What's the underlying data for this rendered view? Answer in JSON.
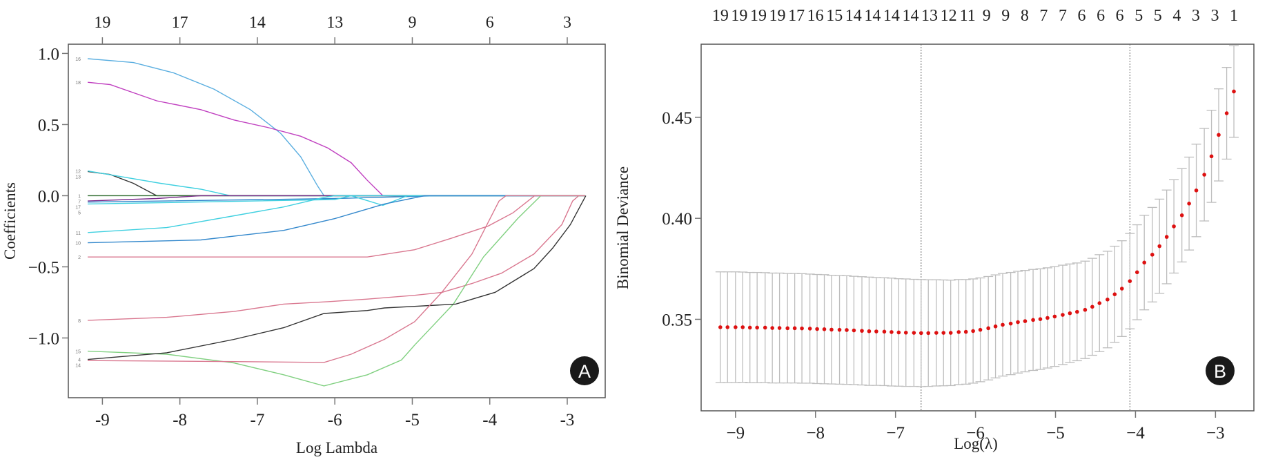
{
  "chart_data": [
    {
      "panel": "A",
      "type": "line",
      "title": "",
      "xlabel": "Log Lambda",
      "ylabel": "Coefficients",
      "xlim": [
        -9.44,
        -2.51
      ],
      "ylim": [
        -1.42,
        1.065
      ],
      "xticks": [
        "-9",
        "-8",
        "-7",
        "-6",
        "-5",
        "-4",
        "-3"
      ],
      "xtick_values": [
        -9,
        -8,
        -7,
        -6,
        -5,
        -4,
        -3
      ],
      "yticks": [
        "1.0",
        "0.5",
        "0.0",
        "−0.5",
        "−1.0"
      ],
      "ytick_values": [
        1.0,
        0.5,
        0.0,
        -0.5,
        -1.0
      ],
      "top_axis_labels": [
        "19",
        "17",
        "14",
        "13",
        "9",
        "6",
        "3"
      ],
      "grid": false,
      "series": [
        {
          "name": "16",
          "color": "#5aaee0",
          "points": [
            [
              -9.19,
              0.963
            ],
            [
              -8.6,
              0.936
            ],
            [
              -8.08,
              0.863
            ],
            [
              -7.56,
              0.749
            ],
            [
              -7.09,
              0.605
            ],
            [
              -6.7,
              0.439
            ],
            [
              -6.44,
              0.273
            ],
            [
              -6.22,
              0.066
            ],
            [
              -6.14,
              0
            ],
            [
              -2.77,
              0
            ]
          ]
        },
        {
          "name": "18",
          "color": "#c040c0",
          "points": [
            [
              -9.19,
              0.797
            ],
            [
              -8.9,
              0.781
            ],
            [
              -8.3,
              0.667
            ],
            [
              -7.73,
              0.605
            ],
            [
              -7.3,
              0.532
            ],
            [
              -6.87,
              0.48
            ],
            [
              -6.44,
              0.418
            ],
            [
              -6.09,
              0.335
            ],
            [
              -5.79,
              0.232
            ],
            [
              -5.58,
              0.108
            ],
            [
              -5.38,
              0
            ],
            [
              -2.77,
              0
            ]
          ]
        },
        {
          "name": "13",
          "color": "#333333",
          "points": [
            [
              -9.19,
              0.17
            ],
            [
              -8.9,
              0.149
            ],
            [
              -8.6,
              0.087
            ],
            [
              -8.3,
              0
            ],
            [
              -2.77,
              0
            ]
          ]
        },
        {
          "name": "12",
          "color": "#40d0e0",
          "points": [
            [
              -9.19,
              0.174
            ],
            [
              -8.25,
              0.087
            ],
            [
              -7.73,
              0.046
            ],
            [
              -7.35,
              0
            ],
            [
              -2.77,
              0
            ]
          ]
        },
        {
          "name": "1",
          "color": "#2e6b2e",
          "points": [
            [
              -9.19,
              0
            ],
            [
              -2.77,
              0
            ]
          ]
        },
        {
          "name": "7",
          "color": "#7a2a8a",
          "points": [
            [
              -9.19,
              -0.037
            ],
            [
              -8.3,
              -0.02
            ],
            [
              -7.73,
              0
            ],
            [
              -2.77,
              0
            ]
          ]
        },
        {
          "name": "17",
          "color": "#3388cc",
          "points": [
            [
              -9.19,
              -0.045
            ],
            [
              -6.0,
              -0.02
            ],
            [
              -4.63,
              0
            ],
            [
              -2.77,
              0
            ]
          ]
        },
        {
          "name": "5",
          "color": "#40d0e0",
          "points": [
            [
              -9.19,
              -0.058
            ],
            [
              -6.0,
              -0.027
            ],
            [
              -5.79,
              0
            ],
            [
              -5.38,
              -0.068
            ],
            [
              -5.06,
              0
            ],
            [
              -2.77,
              0
            ]
          ]
        },
        {
          "name": "11",
          "color": "#40d0e0",
          "points": [
            [
              -9.19,
              -0.259
            ],
            [
              -8.17,
              -0.224
            ],
            [
              -7.3,
              -0.141
            ],
            [
              -6.66,
              -0.079
            ],
            [
              -6.14,
              -0.012
            ],
            [
              -6.0,
              0
            ],
            [
              -2.77,
              0
            ]
          ]
        },
        {
          "name": "10",
          "color": "#3388cc",
          "points": [
            [
              -9.19,
              -0.331
            ],
            [
              -7.73,
              -0.311
            ],
            [
              -6.66,
              -0.244
            ],
            [
              -6.0,
              -0.161
            ],
            [
              -5.36,
              -0.058
            ],
            [
              -4.84,
              0
            ],
            [
              -2.77,
              0
            ]
          ]
        },
        {
          "name": "2",
          "color": "#d9778f",
          "points": [
            [
              -9.19,
              -0.431
            ],
            [
              -5.58,
              -0.431
            ],
            [
              -4.97,
              -0.38
            ],
            [
              -4.5,
              -0.3
            ],
            [
              -4.02,
              -0.213
            ],
            [
              -3.7,
              -0.12
            ],
            [
              -3.42,
              0
            ],
            [
              -2.77,
              0
            ]
          ]
        },
        {
          "name": "8",
          "color": "#d9778f",
          "points": [
            [
              -9.19,
              -0.876
            ],
            [
              -8.17,
              -0.855
            ],
            [
              -7.3,
              -0.814
            ],
            [
              -6.66,
              -0.762
            ],
            [
              -6.09,
              -0.745
            ],
            [
              -5.58,
              -0.727
            ],
            [
              -4.97,
              -0.7
            ],
            [
              -4.62,
              -0.68
            ],
            [
              -4.23,
              -0.617
            ],
            [
              -3.85,
              -0.545
            ],
            [
              -3.43,
              -0.41
            ],
            [
              -3.07,
              -0.203
            ],
            [
              -2.93,
              -0.037
            ],
            [
              -2.85,
              0
            ],
            [
              -2.77,
              0
            ]
          ]
        },
        {
          "name": "15",
          "color": "#80d080",
          "points": [
            [
              -9.19,
              -1.093
            ],
            [
              -8.17,
              -1.114
            ],
            [
              -7.3,
              -1.176
            ],
            [
              -6.66,
              -1.259
            ],
            [
              -6.14,
              -1.337
            ],
            [
              -5.58,
              -1.259
            ],
            [
              -5.14,
              -1.155
            ],
            [
              -4.97,
              -1.05
            ],
            [
              -4.47,
              -0.762
            ],
            [
              -4.08,
              -0.43
            ],
            [
              -3.86,
              -0.296
            ],
            [
              -3.64,
              -0.161
            ],
            [
              -3.34,
              0
            ],
            [
              -2.77,
              0
            ]
          ]
        },
        {
          "name": "4",
          "color": "#333333",
          "points": [
            [
              -9.19,
              -1.151
            ],
            [
              -8.17,
              -1.104
            ],
            [
              -7.3,
              -1.01
            ],
            [
              -6.66,
              -0.928
            ],
            [
              -6.14,
              -0.828
            ],
            [
              -5.58,
              -0.807
            ],
            [
              -5.36,
              -0.789
            ],
            [
              -4.97,
              -0.778
            ],
            [
              -4.44,
              -0.762
            ],
            [
              -3.93,
              -0.679
            ],
            [
              -3.43,
              -0.513
            ],
            [
              -3.19,
              -0.369
            ],
            [
              -2.96,
              -0.203
            ],
            [
              -2.76,
              0
            ]
          ]
        },
        {
          "name": "14",
          "color": "#d9778f",
          "points": [
            [
              -9.19,
              -1.159
            ],
            [
              -7.3,
              -1.166
            ],
            [
              -6.14,
              -1.172
            ],
            [
              -5.79,
              -1.114
            ],
            [
              -5.36,
              -1.01
            ],
            [
              -4.97,
              -0.886
            ],
            [
              -4.62,
              -0.68
            ],
            [
              -4.23,
              -0.41
            ],
            [
              -3.88,
              -0.037
            ],
            [
              -3.79,
              0
            ],
            [
              -2.77,
              0
            ]
          ]
        }
      ],
      "badge": "A"
    },
    {
      "panel": "B",
      "type": "scatter",
      "title": "",
      "xlabel": "Log(λ)",
      "ylabel": "Binomial Deviance",
      "xlim": [
        -9.43,
        -2.52
      ],
      "ylim": [
        0.3047,
        0.4862
      ],
      "xticks": [
        "−9",
        "−8",
        "−7",
        "−6",
        "−5",
        "−4",
        "−3"
      ],
      "xtick_values": [
        -9,
        -8,
        -7,
        -6,
        -5,
        -4,
        -3
      ],
      "yticks": [
        "0.45",
        "0.40",
        "0.35"
      ],
      "ytick_values": [
        0.45,
        0.4,
        0.35
      ],
      "top_axis_labels": [
        "19",
        "19",
        "19",
        "19",
        "17",
        "16",
        "15",
        "14",
        "14",
        "14",
        "14",
        "13",
        "12",
        "11",
        "9",
        "9",
        "8",
        "7",
        "7",
        "6",
        "6",
        "6",
        "5",
        "5",
        "4",
        "3",
        "3",
        "1"
      ],
      "grid": false,
      "point_color": "#dd1111",
      "errorbar_color": "#bdbdbd",
      "vlines": [
        -6.68,
        -4.07
      ],
      "log_lambda": [
        -9.19,
        -9.1,
        -9.0,
        -8.91,
        -8.82,
        -8.73,
        -8.63,
        -8.54,
        -8.45,
        -8.35,
        -8.26,
        -8.17,
        -8.07,
        -7.98,
        -7.89,
        -7.8,
        -7.7,
        -7.61,
        -7.52,
        -7.42,
        -7.33,
        -7.24,
        -7.14,
        -7.05,
        -6.96,
        -6.87,
        -6.77,
        -6.68,
        -6.59,
        -6.49,
        -6.4,
        -6.31,
        -6.21,
        -6.12,
        -6.03,
        -5.94,
        -5.84,
        -5.75,
        -5.66,
        -5.56,
        -5.47,
        -5.38,
        -5.28,
        -5.19,
        -5.1,
        -5.01,
        -4.91,
        -4.82,
        -4.73,
        -4.63,
        -4.54,
        -4.45,
        -4.35,
        -4.26,
        -4.17,
        -4.07,
        -3.98,
        -3.89,
        -3.79,
        -3.7,
        -3.61,
        -3.52,
        -3.42,
        -3.33,
        -3.24,
        -3.14,
        -3.05,
        -2.96,
        -2.86,
        -2.77
      ],
      "deviance": [
        0.3461,
        0.3461,
        0.3461,
        0.3461,
        0.3459,
        0.3459,
        0.3459,
        0.3457,
        0.3457,
        0.3456,
        0.3456,
        0.3455,
        0.3454,
        0.3452,
        0.3451,
        0.3449,
        0.3448,
        0.3447,
        0.3445,
        0.3443,
        0.3441,
        0.344,
        0.3439,
        0.3437,
        0.3435,
        0.3434,
        0.3433,
        0.3432,
        0.3432,
        0.3433,
        0.3433,
        0.3433,
        0.3437,
        0.3438,
        0.3442,
        0.3448,
        0.3456,
        0.3465,
        0.3473,
        0.3479,
        0.3486,
        0.3491,
        0.3497,
        0.3501,
        0.3507,
        0.3514,
        0.3522,
        0.353,
        0.3537,
        0.3547,
        0.3562,
        0.358,
        0.3598,
        0.3624,
        0.3652,
        0.3689,
        0.3733,
        0.3781,
        0.382,
        0.3862,
        0.3908,
        0.396,
        0.4015,
        0.4073,
        0.4138,
        0.4216,
        0.4307,
        0.4413,
        0.452,
        0.4628
      ],
      "se": [
        0.0274,
        0.0274,
        0.0274,
        0.0273,
        0.0273,
        0.0273,
        0.0272,
        0.0272,
        0.0272,
        0.0271,
        0.0271,
        0.0271,
        0.027,
        0.027,
        0.027,
        0.0269,
        0.0269,
        0.0269,
        0.0268,
        0.0268,
        0.0268,
        0.0267,
        0.0267,
        0.0267,
        0.0266,
        0.0266,
        0.0265,
        0.0265,
        0.0264,
        0.0263,
        0.0262,
        0.0261,
        0.026,
        0.0259,
        0.0258,
        0.0257,
        0.0256,
        0.0255,
        0.0254,
        0.0253,
        0.0252,
        0.0251,
        0.025,
        0.0249,
        0.0248,
        0.0247,
        0.0246,
        0.0244,
        0.0242,
        0.0241,
        0.024,
        0.024,
        0.0239,
        0.0238,
        0.0237,
        0.0236,
        0.0235,
        0.0234,
        0.0234,
        0.0233,
        0.0232,
        0.0231,
        0.0231,
        0.023,
        0.0229,
        0.0229,
        0.0228,
        0.0228,
        0.0227,
        0.0227
      ],
      "badge": "B"
    }
  ]
}
